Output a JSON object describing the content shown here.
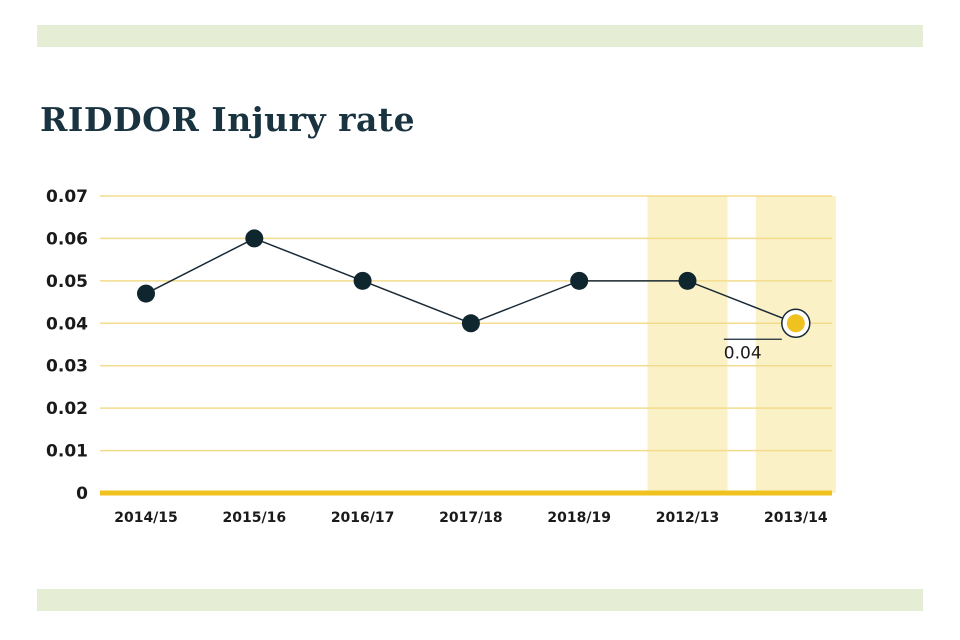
{
  "colors": {
    "band": "#e5eed5",
    "highlight": "#fbf1c6",
    "gridline": "#f3dc8d",
    "baseline": "#f0c21f",
    "line": "#1a2a36",
    "marker": "#10262f",
    "last_marker": "#f0c21f",
    "title": "#193340"
  },
  "chart_data": {
    "type": "line",
    "title": "RIDDOR Injury rate",
    "xlabel": "",
    "ylabel": "",
    "categories": [
      "2014/15",
      "2015/16",
      "2016/17",
      "2017/18",
      "2018/19",
      "2012/13",
      "2013/14"
    ],
    "values": [
      0.047,
      0.06,
      0.05,
      0.04,
      0.05,
      0.05,
      0.04
    ],
    "ylim": [
      0,
      0.07
    ],
    "yticks": [
      "0",
      "0.01",
      "0.02",
      "0.03",
      "0.04",
      "0.05",
      "0.06",
      "0.07"
    ],
    "highlighted_categories": [
      "2012/13",
      "2013/14"
    ],
    "annotation": {
      "category": "2013/14",
      "label": "0.04"
    },
    "grid": "horizontal",
    "legend": "none"
  }
}
